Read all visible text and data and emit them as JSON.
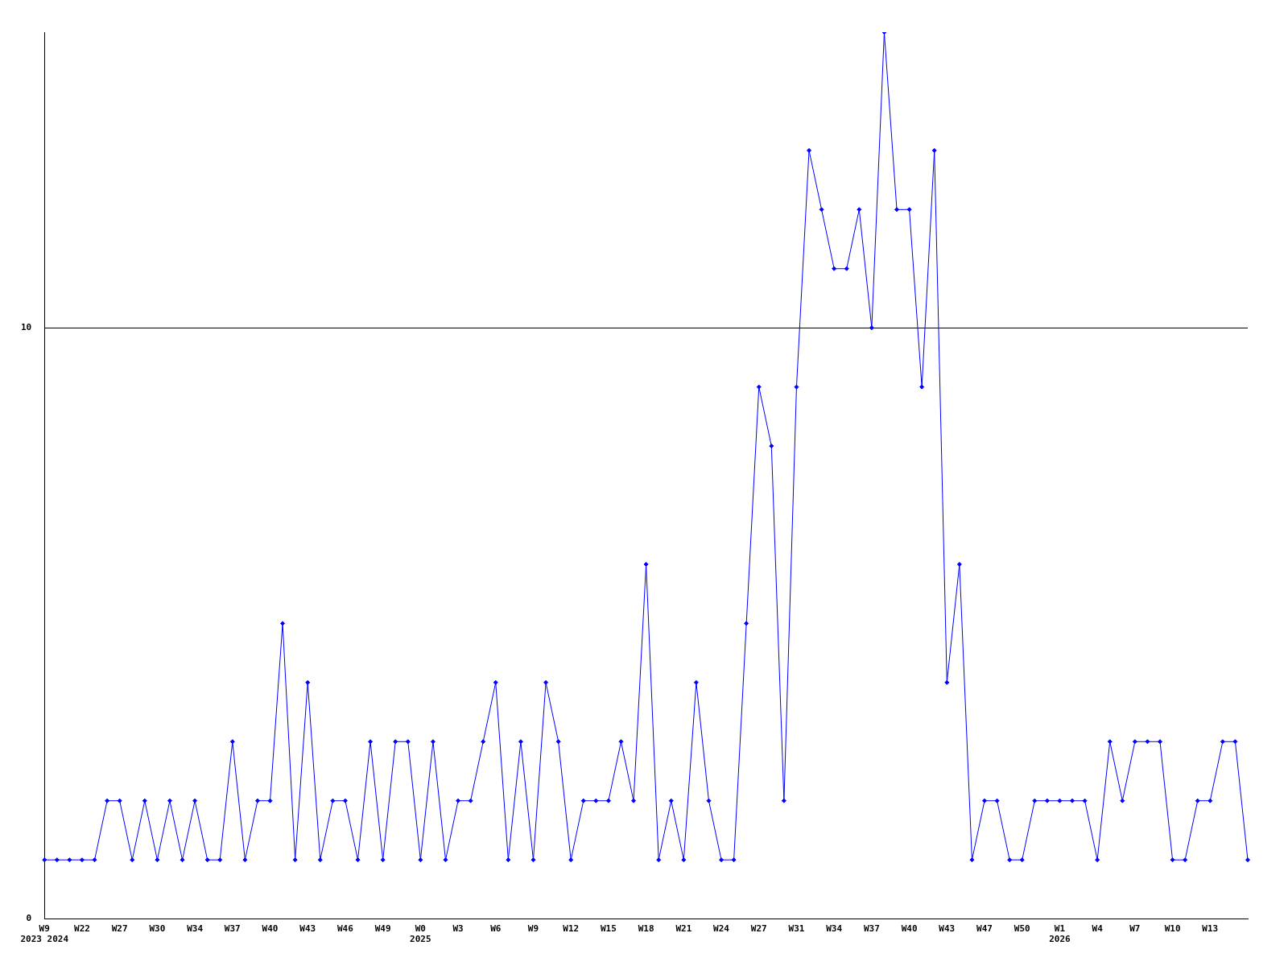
{
  "chart_data": {
    "type": "line",
    "categories": [
      "W9\n2023 2024",
      null,
      null,
      "W22",
      null,
      null,
      "W27",
      null,
      null,
      "W30",
      null,
      null,
      "W34",
      null,
      null,
      "W37",
      null,
      null,
      "W40",
      null,
      null,
      "W43",
      null,
      null,
      "W46",
      null,
      null,
      "W49",
      null,
      null,
      "W0\n2025",
      null,
      null,
      "W3",
      null,
      null,
      "W6",
      null,
      null,
      "W9",
      null,
      null,
      "W12",
      null,
      null,
      "W15",
      null,
      null,
      "W18",
      null,
      null,
      "W21",
      null,
      null,
      "W24",
      null,
      null,
      "W27",
      null,
      null,
      "W31",
      null,
      null,
      "W34",
      null,
      null,
      "W37",
      null,
      null,
      "W40",
      null,
      null,
      "W43",
      null,
      null,
      "W47",
      null,
      null,
      "W50",
      null,
      null,
      "W1\n2026",
      null,
      null,
      "W4",
      null,
      null,
      "W7",
      null,
      null,
      "W10",
      null,
      null,
      "W13",
      null,
      null,
      null
    ],
    "series": [
      {
        "color": "#0000ff",
        "values": [
          1,
          1,
          1,
          1,
          1,
          2,
          2,
          1,
          2,
          1,
          2,
          1,
          2,
          1,
          1,
          3,
          1,
          2,
          2,
          5,
          1,
          4,
          1,
          2,
          2,
          1,
          3,
          1,
          3,
          3,
          1,
          3,
          1,
          2,
          2,
          3,
          4,
          1,
          3,
          1,
          4,
          3,
          1,
          2,
          2,
          2,
          3,
          2,
          6,
          1,
          2,
          1,
          4,
          2,
          1,
          1,
          5,
          9,
          8,
          2,
          9,
          13,
          12,
          11,
          11,
          12,
          10,
          15,
          12,
          12,
          9,
          13,
          4,
          6,
          1,
          2,
          2,
          1,
          1,
          2,
          2,
          2,
          2,
          2,
          1,
          3,
          2,
          3,
          3,
          3,
          1,
          1,
          2,
          2,
          3,
          3,
          1
        ]
      }
    ],
    "ylim": [
      0,
      15
    ],
    "yticks": [
      0,
      10
    ],
    "grid": "y",
    "legend": false,
    "marker": "diamond",
    "line_style": "solid"
  }
}
